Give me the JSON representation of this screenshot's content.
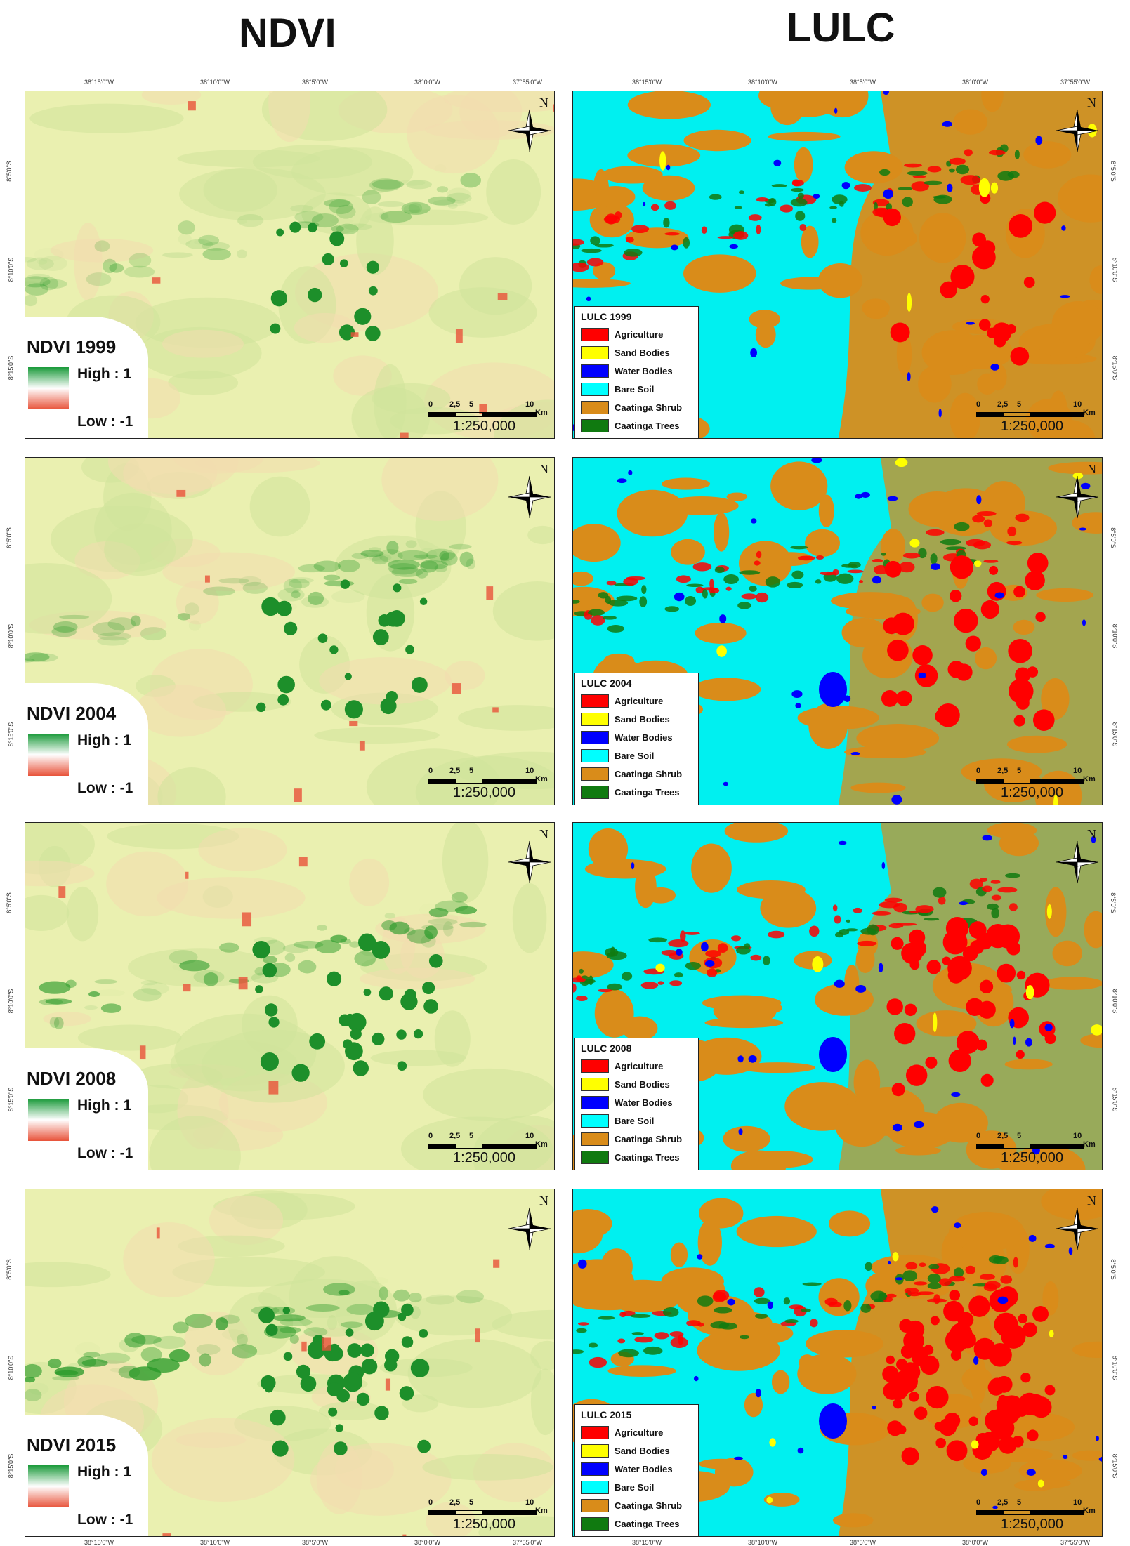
{
  "titles": {
    "ndvi": "NDVI",
    "lulc": "LULC"
  },
  "coords_top": [
    "38°15'0\"W",
    "38°10'0\"W",
    "38°5'0\"W",
    "38°0'0\"W",
    "37°55'0\"W"
  ],
  "coords_bottom": [
    "38°15'0\"W",
    "38°10'0\"W",
    "38°5'0\"W",
    "38°0'0\"W",
    "37°55'0\"W"
  ],
  "coords_side": [
    "8°5'0\"S",
    "8°10'0\"S",
    "8°15'0\"S"
  ],
  "north_label": "N",
  "scale": {
    "ticks": [
      "0",
      "2,5",
      "5",
      "10"
    ],
    "unit": "Km",
    "ratio": "1:250,000"
  },
  "ndvi_legend": {
    "high": "High : 1",
    "low": "Low : -1"
  },
  "ndvi_panels": [
    {
      "title": "NDVI 1999"
    },
    {
      "title": "NDVI 2004"
    },
    {
      "title": "NDVI 2008"
    },
    {
      "title": "NDVI 2015"
    }
  ],
  "lulc_classes": [
    {
      "label": "Agriculture",
      "color": "#ff0000"
    },
    {
      "label": "Sand Bodies",
      "color": "#ffff00"
    },
    {
      "label": "Water Bodies",
      "color": "#0000ff"
    },
    {
      "label": "Bare Soil",
      "color": "#00ffff"
    },
    {
      "label": "Caatinga Shrub",
      "color": "#d98c1a"
    },
    {
      "label": "Caatinga Trees",
      "color": "#107a10"
    }
  ],
  "lulc_panels": [
    {
      "title": "LULC 1999"
    },
    {
      "title": "LULC 2004"
    },
    {
      "title": "LULC 2008"
    },
    {
      "title": "LULC 2015"
    }
  ],
  "colors": {
    "ndvi_base": "#eaf0b0",
    "ndvi_green": "#2a9a2a",
    "ndvi_red": "#e8533a",
    "lulc_bare": "#00f0f0",
    "lulc_shrub": "#d98c1a"
  }
}
